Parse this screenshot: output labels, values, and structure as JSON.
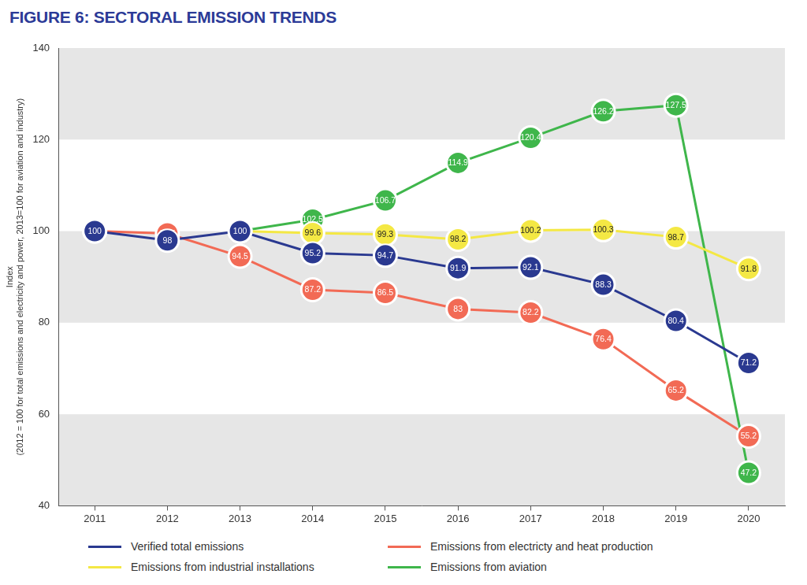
{
  "chart_data": {
    "type": "line",
    "title": "FIGURE 6: SECTORAL EMISSION TRENDS",
    "y_label": [
      "Index",
      "(2012 = 100 for total emissions and electricity and power, 2013=100 for aviation and industry)"
    ],
    "categories": [
      "2011",
      "2012",
      "2013",
      "2014",
      "2015",
      "2016",
      "2017",
      "2018",
      "2019",
      "2020"
    ],
    "series": [
      {
        "name": "Verified total emissions",
        "color": "#2a3990",
        "values": [
          100,
          98,
          100,
          95.2,
          94.7,
          91.9,
          92.1,
          88.3,
          80.4,
          71.2
        ]
      },
      {
        "name": "Emissions from electricty and heat production",
        "color": "#f26a55",
        "values": [
          100,
          99.5,
          94.5,
          87.2,
          86.5,
          83,
          82.2,
          76.4,
          65.2,
          55.2
        ]
      },
      {
        "name": "Emissions from industrial installations",
        "color": "#f4e844",
        "values": [
          null,
          null,
          100,
          99.6,
          99.3,
          98.2,
          100.2,
          100.3,
          98.7,
          91.8
        ]
      },
      {
        "name": "Emissions from aviation",
        "color": "#3fb64b",
        "values": [
          null,
          null,
          100,
          102.5,
          106.7,
          114.9,
          120.4,
          126.2,
          127.5,
          47.2
        ]
      }
    ],
    "ylim": [
      40,
      140
    ],
    "yticks": [
      40,
      60,
      80,
      100,
      120,
      140
    ],
    "grid": true,
    "legend": "bottom",
    "data_labels": true,
    "marker": "circle"
  }
}
